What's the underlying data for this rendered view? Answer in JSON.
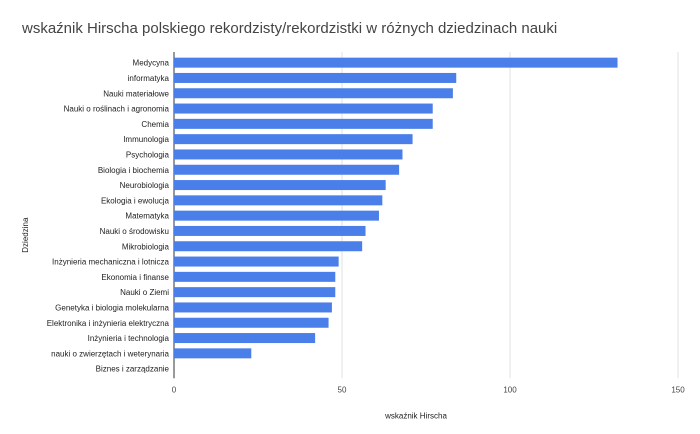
{
  "chart_data": {
    "type": "bar",
    "orientation": "horizontal",
    "title": "wskaźnik Hirscha polskiego rekordzisty/rekordzistki w różnych dziedzinach nauki",
    "xlabel": "wskaźnik Hirscha",
    "ylabel": "Dziedzina",
    "xlim": [
      0,
      150
    ],
    "xticks": [
      0,
      50,
      100,
      150
    ],
    "grid": true,
    "bar_color": "#4a7ee8",
    "grid_color": "#e0e0e0",
    "categories": [
      "Medycyna",
      "informatyka",
      "Nauki materiałowe",
      "Nauki o roślinach i agronomia",
      "Chemia",
      "Immunologia",
      "Psychologia",
      "Biologia i biochemia",
      "Neurobiologia",
      "Ekologia i ewolucja",
      "Matematyka",
      "Nauki o środowisku",
      "Mikrobiologia",
      "Inżynieria mechaniczna i lotnicza",
      "Ekonomia i finanse",
      "Nauki o Ziemi",
      "Genetyka i biologia molekularna",
      "Elektronika i inżynieria elektryczna",
      "Inżynieria i technologia",
      "nauki o zwierzętach i weterynaria",
      "Biznes i zarządzanie"
    ],
    "values": [
      132,
      84,
      83,
      77,
      77,
      71,
      68,
      67,
      63,
      62,
      61,
      57,
      56,
      49,
      48,
      48,
      47,
      46,
      42,
      23,
      0
    ]
  }
}
